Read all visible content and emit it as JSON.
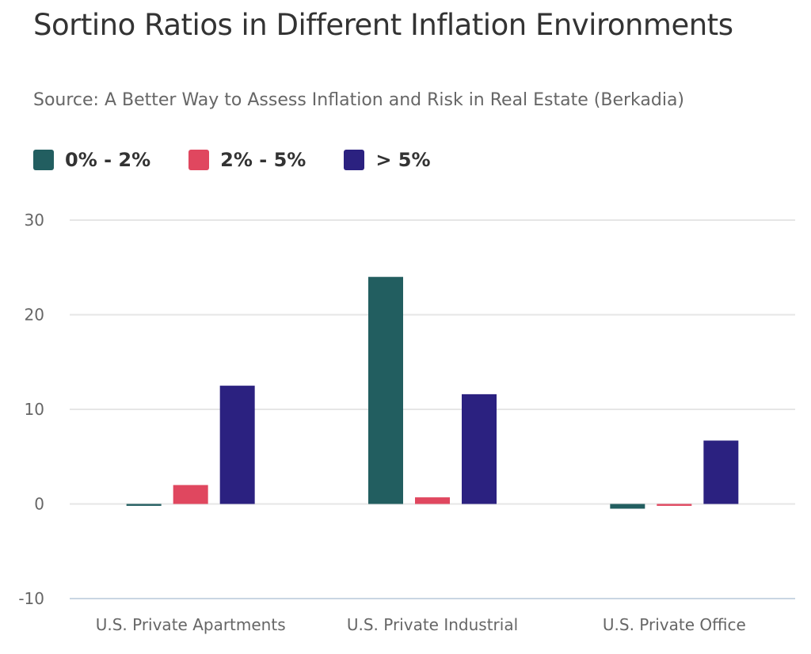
{
  "chart_data": {
    "type": "bar",
    "title": "Sortino Ratios in Different Inflation Environments",
    "subtitle": "Source: A Better Way to Assess Inflation and Risk in Real Estate (Berkadia)",
    "categories": [
      "U.S. Private Apartments",
      "U.S. Private Industrial",
      "U.S. Private Office"
    ],
    "series": [
      {
        "name": "0% - 2%",
        "color": "#225e60",
        "values": [
          -0.2,
          24,
          -0.5
        ]
      },
      {
        "name": "2% - 5%",
        "color": "#e0475f",
        "values": [
          2,
          0.7,
          -0.2
        ]
      },
      {
        "name": "> 5%",
        "color": "#2b2180",
        "values": [
          12.5,
          11.6,
          6.7
        ]
      }
    ],
    "yticks": [
      -10,
      0,
      10,
      20,
      30
    ],
    "ylim": [
      -10,
      30
    ],
    "grid": true,
    "legend": "top-left",
    "xlabel": "",
    "ylabel": ""
  }
}
